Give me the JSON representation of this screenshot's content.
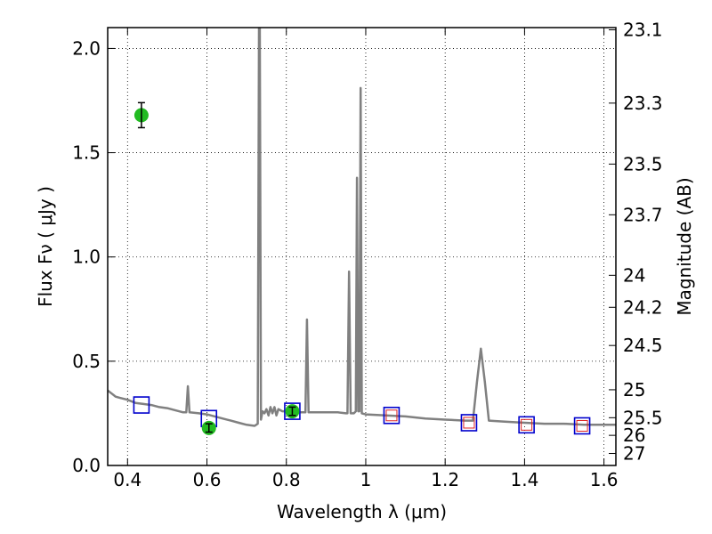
{
  "chart_data": {
    "type": "scatter",
    "xlabel": "Wavelength  λ (μm)",
    "ylabel": "Flux  Fν  ( μJy )",
    "ylabel_right": "Magnitude (AB)",
    "xlim": [
      0.35,
      1.63
    ],
    "ylim": [
      0.0,
      2.1
    ],
    "grid": true,
    "x_ticks": [
      {
        "value": 0.4,
        "label": "0.4"
      },
      {
        "value": 0.6,
        "label": "0.6"
      },
      {
        "value": 0.8,
        "label": "0.8"
      },
      {
        "value": 1.0,
        "label": "1"
      },
      {
        "value": 1.2,
        "label": "1.2"
      },
      {
        "value": 1.4,
        "label": "1.4"
      },
      {
        "value": 1.6,
        "label": "1.6"
      }
    ],
    "y_ticks": [
      {
        "value": 0.0,
        "label": "0.0"
      },
      {
        "value": 0.5,
        "label": "0.5"
      },
      {
        "value": 1.0,
        "label": "1.0"
      },
      {
        "value": 1.5,
        "label": "1.5"
      },
      {
        "value": 2.0,
        "label": "2.0"
      }
    ],
    "right_ticks": [
      {
        "label": "23.1",
        "mag": 23.1
      },
      {
        "label": "23.3",
        "mag": 23.3
      },
      {
        "label": "23.5",
        "mag": 23.5
      },
      {
        "label": "23.7",
        "mag": 23.7
      },
      {
        "label": "24",
        "mag": 24.0
      },
      {
        "label": "24.2",
        "mag": 24.2
      },
      {
        "label": "24.5",
        "mag": 24.5
      },
      {
        "label": "25",
        "mag": 25.0
      },
      {
        "label": "25.5",
        "mag": 25.5
      },
      {
        "label": "26",
        "mag": 26.0
      },
      {
        "label": "27",
        "mag": 27.0
      }
    ],
    "colors": {
      "model": "#808080",
      "observed": "#22bb22",
      "model_box": "#0000cc",
      "model_box_inner": "#dd2222"
    },
    "model_spectrum": [
      [
        0.35,
        0.36
      ],
      [
        0.36,
        0.345
      ],
      [
        0.37,
        0.33
      ],
      [
        0.38,
        0.325
      ],
      [
        0.4,
        0.315
      ],
      [
        0.42,
        0.3
      ],
      [
        0.44,
        0.295
      ],
      [
        0.46,
        0.29
      ],
      [
        0.48,
        0.28
      ],
      [
        0.5,
        0.275
      ],
      [
        0.52,
        0.265
      ],
      [
        0.54,
        0.255
      ],
      [
        0.548,
        0.255
      ],
      [
        0.552,
        0.38
      ],
      [
        0.556,
        0.255
      ],
      [
        0.58,
        0.25
      ],
      [
        0.6,
        0.245
      ],
      [
        0.62,
        0.235
      ],
      [
        0.64,
        0.225
      ],
      [
        0.66,
        0.215
      ],
      [
        0.68,
        0.205
      ],
      [
        0.7,
        0.195
      ],
      [
        0.72,
        0.19
      ],
      [
        0.728,
        0.2
      ],
      [
        0.731,
        2.1
      ],
      [
        0.733,
        2.1
      ],
      [
        0.736,
        0.22
      ],
      [
        0.74,
        0.26
      ],
      [
        0.745,
        0.25
      ],
      [
        0.75,
        0.27
      ],
      [
        0.755,
        0.24
      ],
      [
        0.76,
        0.28
      ],
      [
        0.765,
        0.25
      ],
      [
        0.77,
        0.28
      ],
      [
        0.775,
        0.24
      ],
      [
        0.78,
        0.27
      ],
      [
        0.79,
        0.26
      ],
      [
        0.8,
        0.26
      ],
      [
        0.81,
        0.255
      ],
      [
        0.82,
        0.26
      ],
      [
        0.83,
        0.255
      ],
      [
        0.84,
        0.255
      ],
      [
        0.848,
        0.255
      ],
      [
        0.852,
        0.7
      ],
      [
        0.856,
        0.255
      ],
      [
        0.87,
        0.255
      ],
      [
        0.9,
        0.255
      ],
      [
        0.93,
        0.255
      ],
      [
        0.95,
        0.25
      ],
      [
        0.954,
        0.25
      ],
      [
        0.958,
        0.93
      ],
      [
        0.962,
        0.25
      ],
      [
        0.97,
        0.25
      ],
      [
        0.975,
        0.26
      ],
      [
        0.978,
        1.38
      ],
      [
        0.981,
        0.26
      ],
      [
        0.984,
        0.26
      ],
      [
        0.987,
        1.81
      ],
      [
        0.99,
        0.25
      ],
      [
        1.0,
        0.245
      ],
      [
        1.05,
        0.24
      ],
      [
        1.1,
        0.235
      ],
      [
        1.15,
        0.225
      ],
      [
        1.2,
        0.22
      ],
      [
        1.25,
        0.215
      ],
      [
        1.27,
        0.215
      ],
      [
        1.28,
        0.4
      ],
      [
        1.29,
        0.56
      ],
      [
        1.3,
        0.4
      ],
      [
        1.31,
        0.215
      ],
      [
        1.35,
        0.21
      ],
      [
        1.4,
        0.205
      ],
      [
        1.45,
        0.2
      ],
      [
        1.5,
        0.2
      ],
      [
        1.55,
        0.195
      ],
      [
        1.6,
        0.195
      ],
      [
        1.63,
        0.195
      ]
    ],
    "observed_points": [
      {
        "x": 0.435,
        "y": 1.68,
        "yerr": 0.06
      },
      {
        "x": 0.605,
        "y": 0.18,
        "yerr": 0.02
      },
      {
        "x": 0.815,
        "y": 0.26,
        "yerr": 0.02
      }
    ],
    "model_photometry": [
      {
        "x": 0.435,
        "y": 0.29,
        "inner": false
      },
      {
        "x": 0.605,
        "y": 0.225,
        "inner": false
      },
      {
        "x": 0.815,
        "y": 0.26,
        "inner": false
      },
      {
        "x": 1.065,
        "y": 0.24,
        "inner": true
      },
      {
        "x": 1.26,
        "y": 0.205,
        "inner": true
      },
      {
        "x": 1.405,
        "y": 0.195,
        "inner": true
      },
      {
        "x": 1.545,
        "y": 0.19,
        "inner": true
      }
    ]
  }
}
